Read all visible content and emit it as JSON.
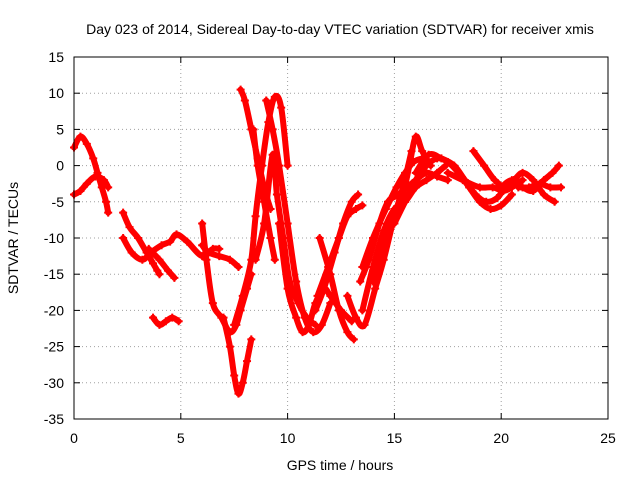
{
  "chart_data": {
    "type": "scatter",
    "title": "Day 023 of 2014, Sidereal Day-to-day VTEC variation (SDTVAR) for receiver xmis",
    "xlabel": "GPS time / hours",
    "ylabel": "SDTVAR / TECUs",
    "xlim": [
      0,
      25
    ],
    "ylim": [
      -35,
      15
    ],
    "xticks": [
      0,
      5,
      10,
      15,
      20,
      25
    ],
    "yticks": [
      15,
      10,
      5,
      0,
      -5,
      -10,
      -15,
      -20,
      -25,
      -30,
      -35
    ],
    "grid": true,
    "marker": "+",
    "color": "#ff0000",
    "series": [
      {
        "name": "s1",
        "x": [
          0,
          0.3,
          0.6,
          0.9,
          1.1,
          1.3,
          1.5,
          1.6
        ],
        "y": [
          2.5,
          4,
          3,
          1,
          -1,
          -3,
          -5,
          -6.5
        ]
      },
      {
        "name": "s2",
        "x": [
          0,
          0.3,
          0.6,
          1.0,
          1.4,
          1.6
        ],
        "y": [
          -4,
          -3.5,
          -2.5,
          -1.5,
          -2,
          -3
        ]
      },
      {
        "name": "s3",
        "x": [
          2.3,
          2.6,
          3.0,
          3.4,
          3.7,
          3.9,
          4.0
        ],
        "y": [
          -6.5,
          -8.5,
          -10,
          -12,
          -13.5,
          -14.5,
          -15
        ]
      },
      {
        "name": "s4",
        "x": [
          2.3,
          2.7,
          3.2,
          3.6,
          4.1,
          4.5,
          4.8,
          5.3,
          6.0,
          6.5,
          6.8
        ],
        "y": [
          -10,
          -12,
          -13,
          -12,
          -11,
          -10.5,
          -9.5,
          -10.5,
          -12.5,
          -11.5,
          -11.5
        ]
      },
      {
        "name": "s5",
        "x": [
          3.5,
          4.0,
          4.4,
          4.7
        ],
        "y": [
          -11.5,
          -13,
          -14.5,
          -15.5
        ]
      },
      {
        "name": "s6",
        "x": [
          6.0,
          6.3,
          6.8,
          7.3,
          7.7
        ],
        "y": [
          -11,
          -12,
          -12.5,
          -13,
          -14
        ]
      },
      {
        "name": "s7",
        "x": [
          3.7,
          4.0,
          4.3,
          4.6,
          4.9
        ],
        "y": [
          -21,
          -22,
          -21.5,
          -21,
          -21.5
        ]
      },
      {
        "name": "s8",
        "x": [
          6.0,
          6.2,
          6.5,
          6.9,
          7.3,
          7.6,
          7.8,
          8.1,
          8.3
        ],
        "y": [
          -8,
          -13,
          -19,
          -21,
          -23,
          -22,
          -20,
          -17,
          -15
        ]
      },
      {
        "name": "s9",
        "x": [
          7.0,
          7.3,
          7.5,
          7.7,
          7.9,
          8.1,
          8.3
        ],
        "y": [
          -21,
          -25,
          -29,
          -31.5,
          -30,
          -27,
          -24
        ]
      },
      {
        "name": "s10",
        "x": [
          7.8,
          8.0,
          8.3,
          8.6,
          8.9,
          9.2
        ],
        "y": [
          10.5,
          9,
          5,
          1,
          -3,
          -6
        ]
      },
      {
        "name": "s11",
        "x": [
          7.5,
          7.9,
          8.3,
          8.5,
          8.8,
          9.1,
          9.4,
          9.7,
          10.0
        ],
        "y": [
          -22,
          -18,
          -13,
          -7,
          0,
          6,
          9.5,
          8,
          0
        ]
      },
      {
        "name": "s12",
        "x": [
          8.4,
          8.6,
          8.9,
          9.2,
          9.4
        ],
        "y": [
          5,
          0,
          -5,
          -10,
          -13
        ]
      },
      {
        "name": "s13",
        "x": [
          9.0,
          9.3,
          9.6,
          10.0,
          10.4,
          10.8,
          11.2,
          11.6,
          12.0
        ],
        "y": [
          9,
          5,
          0,
          -8,
          -16,
          -21,
          -23,
          -22,
          -19
        ]
      },
      {
        "name": "s14",
        "x": [
          8.5,
          8.9,
          9.3,
          9.5,
          9.8,
          10.1,
          10.5,
          10.9,
          11.3
        ],
        "y": [
          -13,
          -8,
          1.5,
          -4,
          -10,
          -16,
          -19,
          -21,
          -22
        ]
      },
      {
        "name": "s15",
        "x": [
          9.6,
          10.0,
          10.4,
          10.7,
          11.0,
          11.3,
          11.7,
          12.0,
          12.5,
          13.0
        ],
        "y": [
          -8,
          -17,
          -21,
          -23,
          -22,
          -19,
          -17,
          -18,
          -20,
          -21.5
        ]
      },
      {
        "name": "s16",
        "x": [
          11.3,
          11.7,
          12.2,
          12.6,
          13.0,
          13.3
        ],
        "y": [
          -20,
          -17,
          -12,
          -8,
          -5,
          -4
        ]
      },
      {
        "name": "s17",
        "x": [
          11.4,
          11.9,
          12.4,
          12.8,
          13.2,
          13.5
        ],
        "y": [
          -18,
          -14,
          -10,
          -7,
          -6,
          -5.5
        ]
      },
      {
        "name": "s18",
        "x": [
          11.5,
          12.0,
          12.4,
          12.8,
          13.1
        ],
        "y": [
          -10,
          -15,
          -20,
          -23,
          -24
        ]
      },
      {
        "name": "s19",
        "x": [
          12.8,
          13.2,
          13.6,
          14.1,
          14.5,
          15.0,
          15.4,
          15.8
        ],
        "y": [
          -18,
          -21,
          -22,
          -17,
          -13,
          -7,
          -3,
          2
        ]
      },
      {
        "name": "s20",
        "x": [
          13.4,
          13.8,
          14.3,
          14.7,
          15.2,
          15.6,
          16.0,
          16.5,
          17.0,
          17.5
        ],
        "y": [
          -16,
          -13,
          -8,
          -5,
          -4,
          -3,
          -2,
          -1,
          -1.5,
          -2
        ]
      },
      {
        "name": "s21",
        "x": [
          13.5,
          14.0,
          14.5,
          15.0,
          15.5,
          16.0,
          16.5,
          17.0,
          17.4
        ],
        "y": [
          -20,
          -14,
          -9,
          -6,
          -5,
          -3,
          -2,
          -1,
          0
        ]
      },
      {
        "name": "s22",
        "x": [
          13.5,
          14.0,
          14.6,
          15.1,
          15.5,
          15.9,
          16.3
        ],
        "y": [
          -14,
          -10,
          -6,
          -3,
          -1,
          0.5,
          1
        ]
      },
      {
        "name": "s23",
        "x": [
          14.0,
          14.5,
          15.0,
          15.4,
          15.7,
          16.0,
          16.3,
          16.7
        ],
        "y": [
          -16,
          -10,
          -7,
          -4,
          0,
          4,
          2,
          0
        ]
      },
      {
        "name": "s24",
        "x": [
          15.0,
          15.5,
          16.0,
          16.5,
          17.0,
          17.5,
          18.0,
          18.5,
          19.0,
          19.5,
          20.0,
          20.5
        ],
        "y": [
          -8,
          -5,
          -2,
          0,
          1,
          0.5,
          -1,
          -3,
          -5,
          -6,
          -5.5,
          -4
        ]
      },
      {
        "name": "s25",
        "x": [
          16.0,
          16.6,
          17.2,
          17.8,
          18.3,
          18.8,
          19.3,
          19.8,
          20.2,
          20.6
        ],
        "y": [
          -1,
          1.5,
          1,
          0,
          -2,
          -4,
          -5,
          -4.5,
          -3,
          -2
        ]
      },
      {
        "name": "s26",
        "x": [
          17.5,
          18.2,
          19.0,
          19.6,
          20.1,
          20.5,
          21.0
        ],
        "y": [
          -1,
          -2,
          -3,
          -3,
          -3.5,
          -3,
          -2
        ]
      },
      {
        "name": "s27",
        "x": [
          18.7,
          19.2,
          19.7,
          20.2,
          20.6,
          21.0,
          21.5,
          22.0,
          22.5
        ],
        "y": [
          2,
          0,
          -2,
          -3,
          -2,
          -1,
          -2,
          -4,
          -5
        ]
      },
      {
        "name": "s28",
        "x": [
          20.0,
          20.5,
          21.0,
          21.5,
          22.0,
          22.4,
          22.7
        ],
        "y": [
          -3,
          -2,
          -3,
          -3.5,
          -2,
          -1,
          0
        ]
      },
      {
        "name": "s29",
        "x": [
          20.8,
          21.3,
          21.8,
          22.3,
          22.8
        ],
        "y": [
          -3,
          -3,
          -2.5,
          -3,
          -3
        ]
      }
    ]
  }
}
